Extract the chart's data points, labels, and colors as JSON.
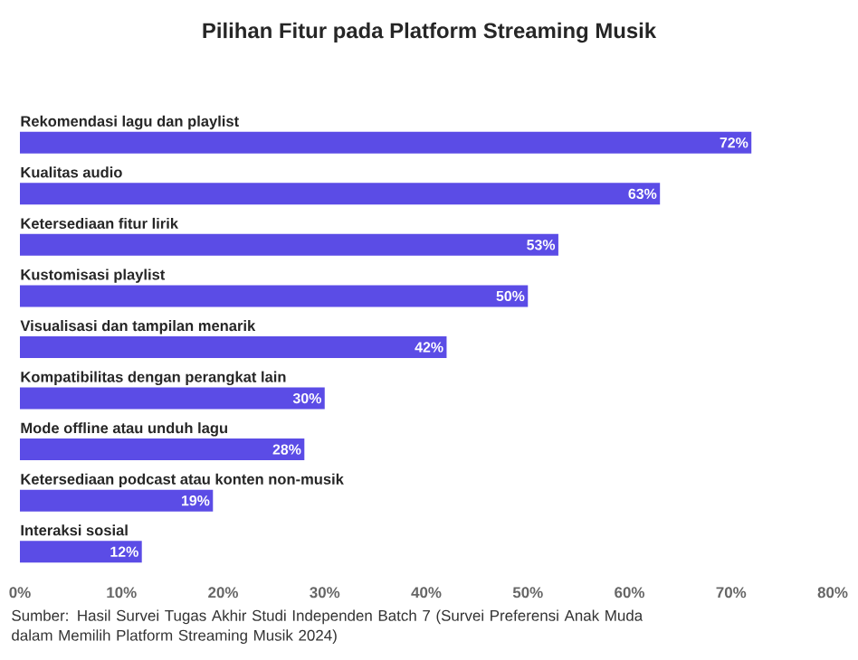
{
  "chart_data": {
    "type": "bar",
    "orientation": "horizontal",
    "title": "Pilihan Fitur pada Platform Streaming Musik",
    "categories": [
      "Rekomendasi lagu dan playlist",
      "Kualitas audio",
      "Ketersediaan fitur lirik",
      "Kustomisasi playlist",
      "Visualisasi dan tampilan menarik",
      "Kompatibilitas dengan perangkat lain",
      "Mode offline atau unduh lagu",
      "Ketersediaan podcast atau konten non-musik",
      "Interaksi sosial"
    ],
    "values": [
      72,
      63,
      53,
      50,
      42,
      30,
      28,
      19,
      12
    ],
    "value_labels": [
      "72%",
      "63%",
      "53%",
      "50%",
      "42%",
      "30%",
      "28%",
      "19%",
      "12%"
    ],
    "color": "#5b4ce6",
    "xlim": [
      0,
      80
    ],
    "xticks": [
      {
        "value": 0,
        "label": "0%"
      },
      {
        "value": 10,
        "label": "10%"
      },
      {
        "value": 20,
        "label": "20%"
      },
      {
        "value": 30,
        "label": "30%"
      },
      {
        "value": 40,
        "label": "40%"
      },
      {
        "value": 50,
        "label": "50%"
      },
      {
        "value": 60,
        "label": "60%"
      },
      {
        "value": 70,
        "label": "70%"
      },
      {
        "value": 80,
        "label": "80%"
      }
    ],
    "annotations": [
      "Sumber: Hasil Survei Tugas Akhir Studi Independen Batch 7 (Survei Preferensi Anak Muda dalam Memilih Platform Streaming Musik 2024)"
    ]
  }
}
